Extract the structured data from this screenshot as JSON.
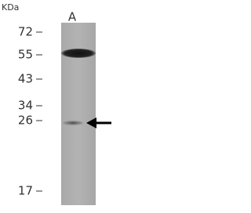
{
  "header": {
    "unit": "KDa",
    "lane": "A"
  },
  "markers": [
    "72",
    "55",
    "43",
    "34",
    "26",
    "17"
  ]
}
